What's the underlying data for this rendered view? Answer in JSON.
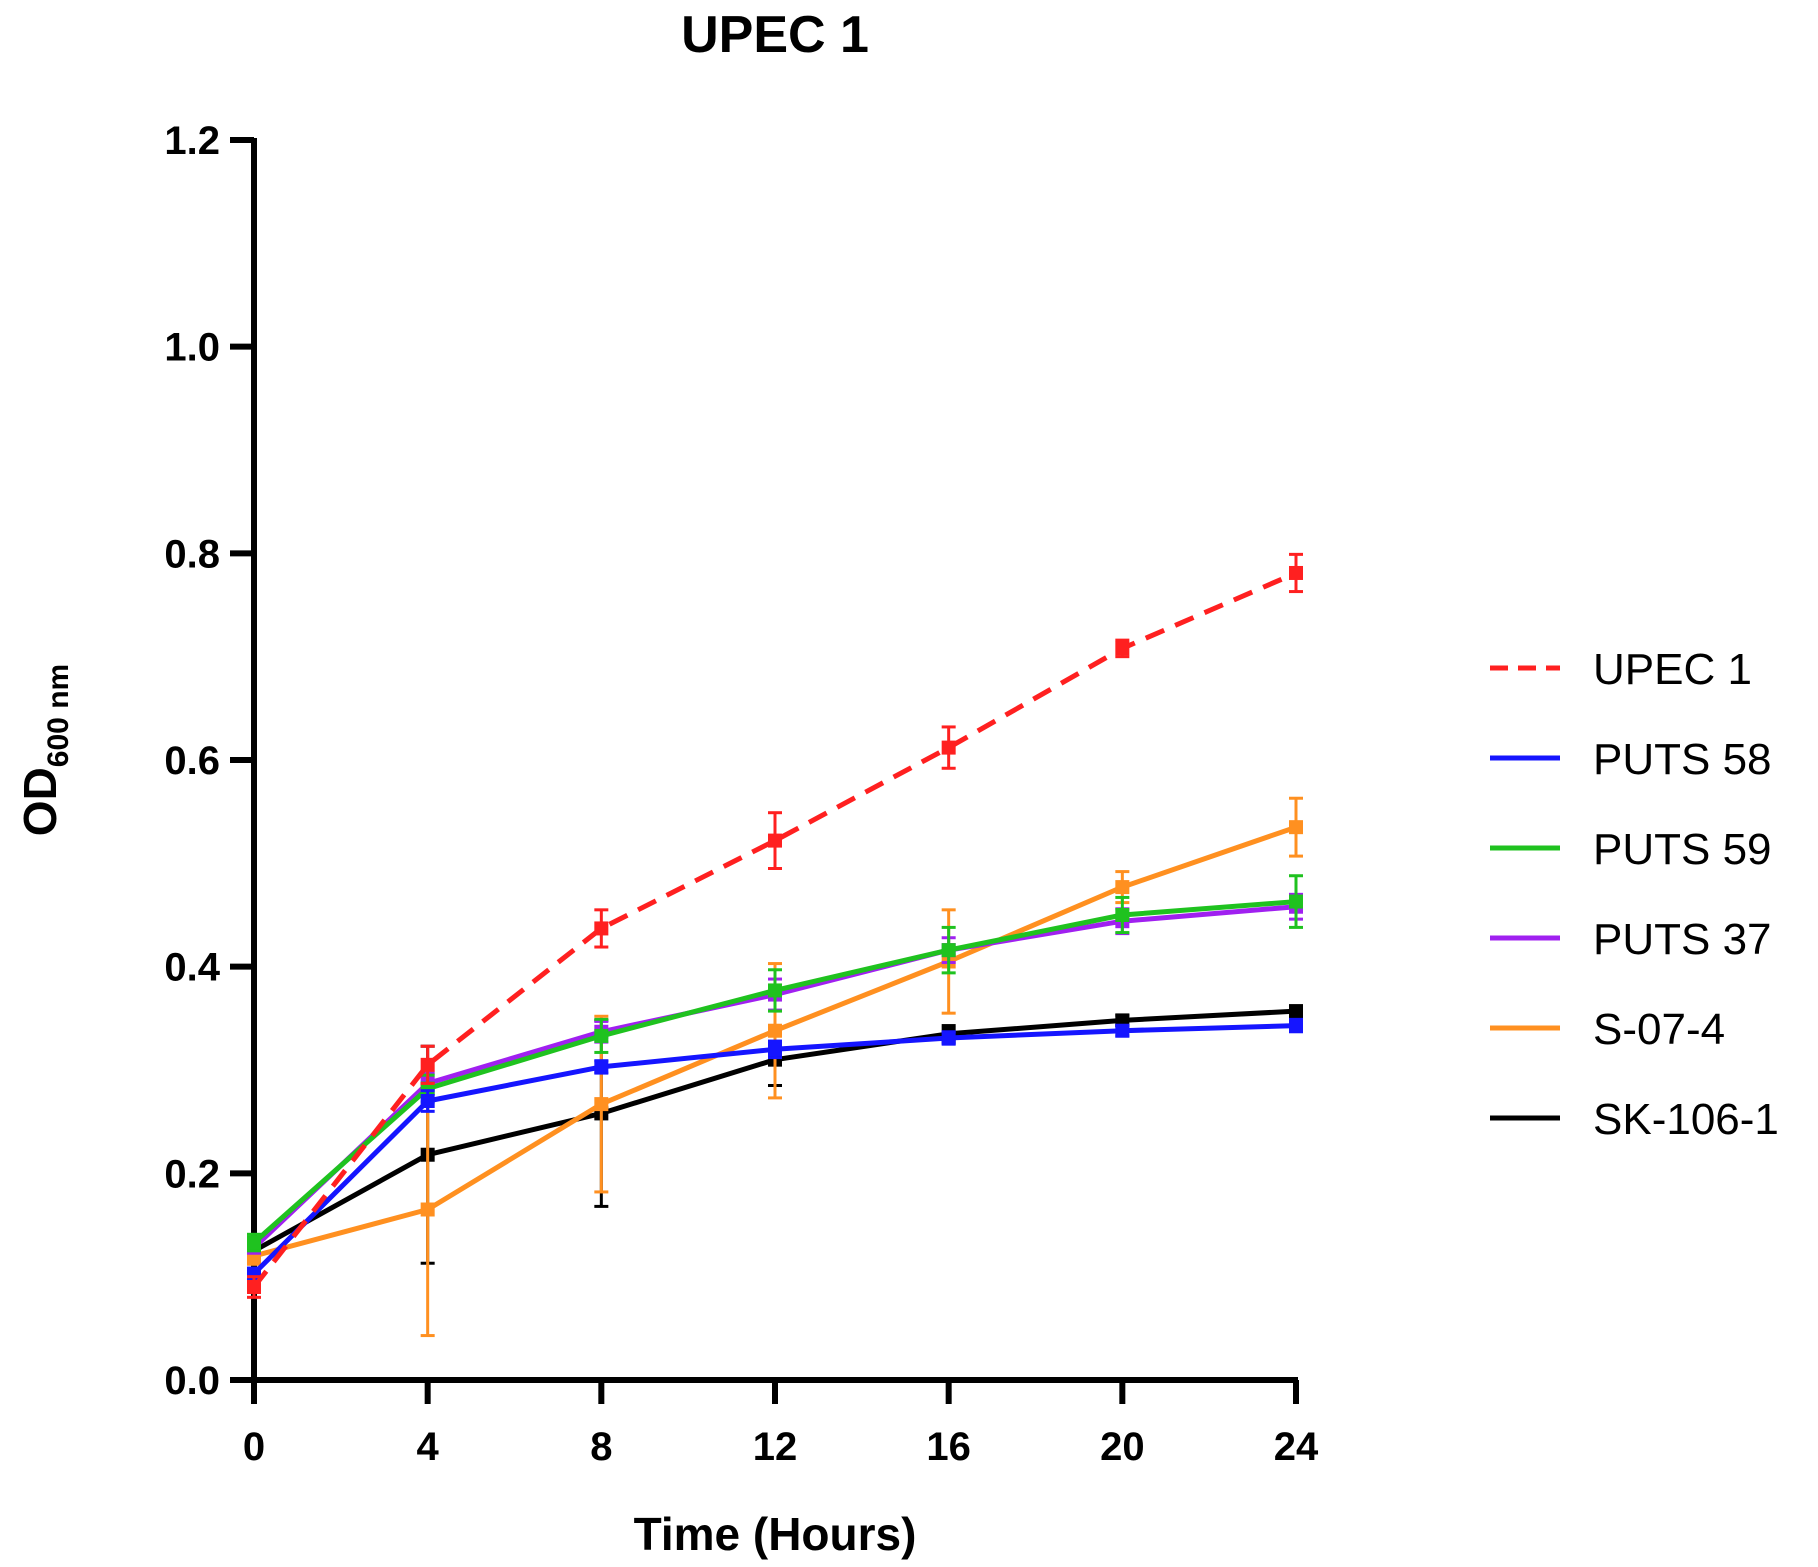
{
  "chart_data": {
    "type": "line",
    "title": "UPEC 1",
    "xlabel": "Time (Hours)",
    "ylabel": "OD",
    "ylabel_sub": "600 nm",
    "x": [
      0,
      4,
      8,
      12,
      16,
      20,
      24
    ],
    "x_ticks": [
      "0",
      "4",
      "8",
      "12",
      "16",
      "20",
      "24"
    ],
    "y_ticks": [
      "0.0",
      "0.2",
      "0.4",
      "0.6",
      "0.8",
      "1.0",
      "1.2"
    ],
    "xlim": [
      0,
      24
    ],
    "ylim": [
      0,
      1.2
    ],
    "grid": false,
    "legend_position": "right",
    "series": [
      {
        "name": "UPEC 1",
        "color": "#ff2020",
        "dash": true,
        "values": [
          0.09,
          0.305,
          0.437,
          0.522,
          0.612,
          0.708,
          0.781
        ],
        "errors": [
          0.01,
          0.018,
          0.018,
          0.027,
          0.02,
          0.008,
          0.018
        ]
      },
      {
        "name": "PUTS 58",
        "color": "#1515ff",
        "dash": false,
        "values": [
          0.103,
          0.27,
          0.303,
          0.32,
          0.331,
          0.338,
          0.343
        ],
        "errors": [
          0.005,
          0.01,
          0.006,
          0.008,
          0.006,
          0.005,
          0.006
        ]
      },
      {
        "name": "PUTS 59",
        "color": "#1fc21f",
        "dash": false,
        "values": [
          0.133,
          0.282,
          0.333,
          0.377,
          0.416,
          0.45,
          0.463
        ],
        "errors": [
          0.008,
          0.013,
          0.016,
          0.02,
          0.022,
          0.017,
          0.025
        ]
      },
      {
        "name": "PUTS 37",
        "color": "#a020f0",
        "dash": false,
        "values": [
          0.128,
          0.287,
          0.337,
          0.373,
          0.416,
          0.444,
          0.458
        ],
        "errors": [
          0.005,
          0.01,
          0.01,
          0.015,
          0.012,
          0.012,
          0.012
        ]
      },
      {
        "name": "S-07-4",
        "color": "#ff9020",
        "dash": false,
        "values": [
          0.12,
          0.165,
          0.267,
          0.338,
          0.405,
          0.477,
          0.535
        ],
        "errors": [
          0.008,
          0.122,
          0.085,
          0.065,
          0.05,
          0.015,
          0.028
        ]
      },
      {
        "name": "SK-106-1",
        "color": "#000000",
        "dash": false,
        "values": [
          0.125,
          0.218,
          0.258,
          0.31,
          0.335,
          0.348,
          0.357
        ],
        "errors": [
          0.005,
          0.105,
          0.09,
          0.025,
          0.008,
          0.005,
          0.005
        ]
      }
    ]
  }
}
